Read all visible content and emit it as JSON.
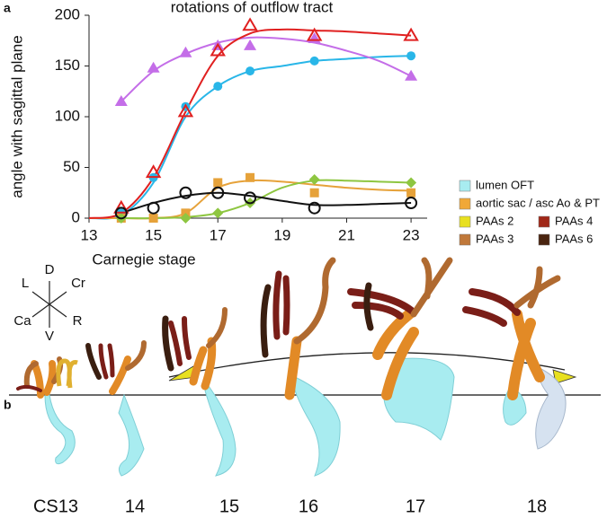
{
  "chart_data": {
    "type": "scatter",
    "title": "rotations of outflow tract",
    "panel_label": "a",
    "x_label": "Carnegie stage",
    "y_label": "angle with sagittal plane",
    "xlim": [
      13,
      23.5
    ],
    "ylim": [
      0,
      200
    ],
    "xticks": [
      13,
      15,
      17,
      19,
      21,
      23
    ],
    "yticks": [
      0,
      50,
      100,
      150,
      200
    ],
    "fit_x": [
      13,
      14,
      15,
      16,
      17,
      18,
      19,
      20,
      21,
      22,
      23
    ],
    "series": [
      {
        "color": "#29b6e8",
        "marker": "circle",
        "filled": true,
        "x": [
          14,
          15,
          16,
          17,
          18,
          20,
          23
        ],
        "values": [
          5,
          40,
          110,
          130,
          145,
          155,
          160
        ],
        "fit": [
          0,
          3,
          35,
          100,
          130,
          145,
          150,
          155,
          157,
          159,
          160
        ]
      },
      {
        "color": "#e6a23a",
        "marker": "square",
        "filled": true,
        "x": [
          14,
          15,
          16,
          17,
          18,
          20,
          23
        ],
        "values": [
          0,
          0,
          5,
          35,
          40,
          25,
          25
        ],
        "fit": [
          0,
          0,
          0,
          5,
          30,
          37,
          36,
          33,
          30,
          28,
          27
        ]
      },
      {
        "color": "#8ec641",
        "marker": "diamond",
        "filled": true,
        "x": [
          14,
          16,
          17,
          18,
          20,
          23
        ],
        "values": [
          0,
          0,
          5,
          15,
          38,
          35
        ],
        "fit": [
          null,
          0,
          0,
          1,
          5,
          15,
          30,
          37,
          37,
          36,
          35
        ]
      },
      {
        "color": "#c46ee8",
        "marker": "triangle",
        "filled": true,
        "x": [
          14,
          15,
          16,
          17,
          18,
          20,
          23
        ],
        "values": [
          115,
          148,
          163,
          170,
          170,
          177,
          140
        ],
        "fit": [
          null,
          115,
          145,
          162,
          173,
          178,
          177,
          173,
          165,
          155,
          140
        ]
      },
      {
        "color": "#e02020",
        "marker": "triangle",
        "filled": false,
        "x": [
          14,
          15,
          16,
          17,
          18,
          20,
          23
        ],
        "values": [
          10,
          45,
          105,
          165,
          190,
          180,
          180
        ],
        "fit": [
          0,
          5,
          40,
          105,
          160,
          182,
          186,
          185,
          184,
          182,
          180
        ]
      },
      {
        "color": "#111111",
        "marker": "circle",
        "filled": false,
        "x": [
          14,
          15,
          16,
          17,
          18,
          20,
          23
        ],
        "values": [
          5,
          10,
          25,
          25,
          20,
          10,
          15
        ],
        "fit": [
          null,
          5,
          15,
          22,
          25,
          22,
          17,
          13,
          13,
          14,
          15
        ]
      }
    ],
    "legend": [
      {
        "label": "lumen OFT",
        "color": "#a8ecf0"
      },
      {
        "label": "aortic sac / asc Ao & PT",
        "color": "#f0a838"
      },
      {
        "label": "PAAs 2",
        "color": "#e8e020"
      },
      {
        "label": "PAAs 4",
        "color": "#a02818"
      },
      {
        "label": "PAAs 3",
        "color": "#c0783a"
      },
      {
        "label": "PAAs 6",
        "color": "#4a2410"
      }
    ]
  },
  "panel_b": {
    "label": "b",
    "compass": {
      "up": "D",
      "down": "V",
      "upper_left": "L",
      "upper_right": "Cr",
      "lower_left": "Ca",
      "lower_right": "R"
    },
    "stages": [
      "CS13",
      "14",
      "15",
      "16",
      "17",
      "18"
    ]
  }
}
